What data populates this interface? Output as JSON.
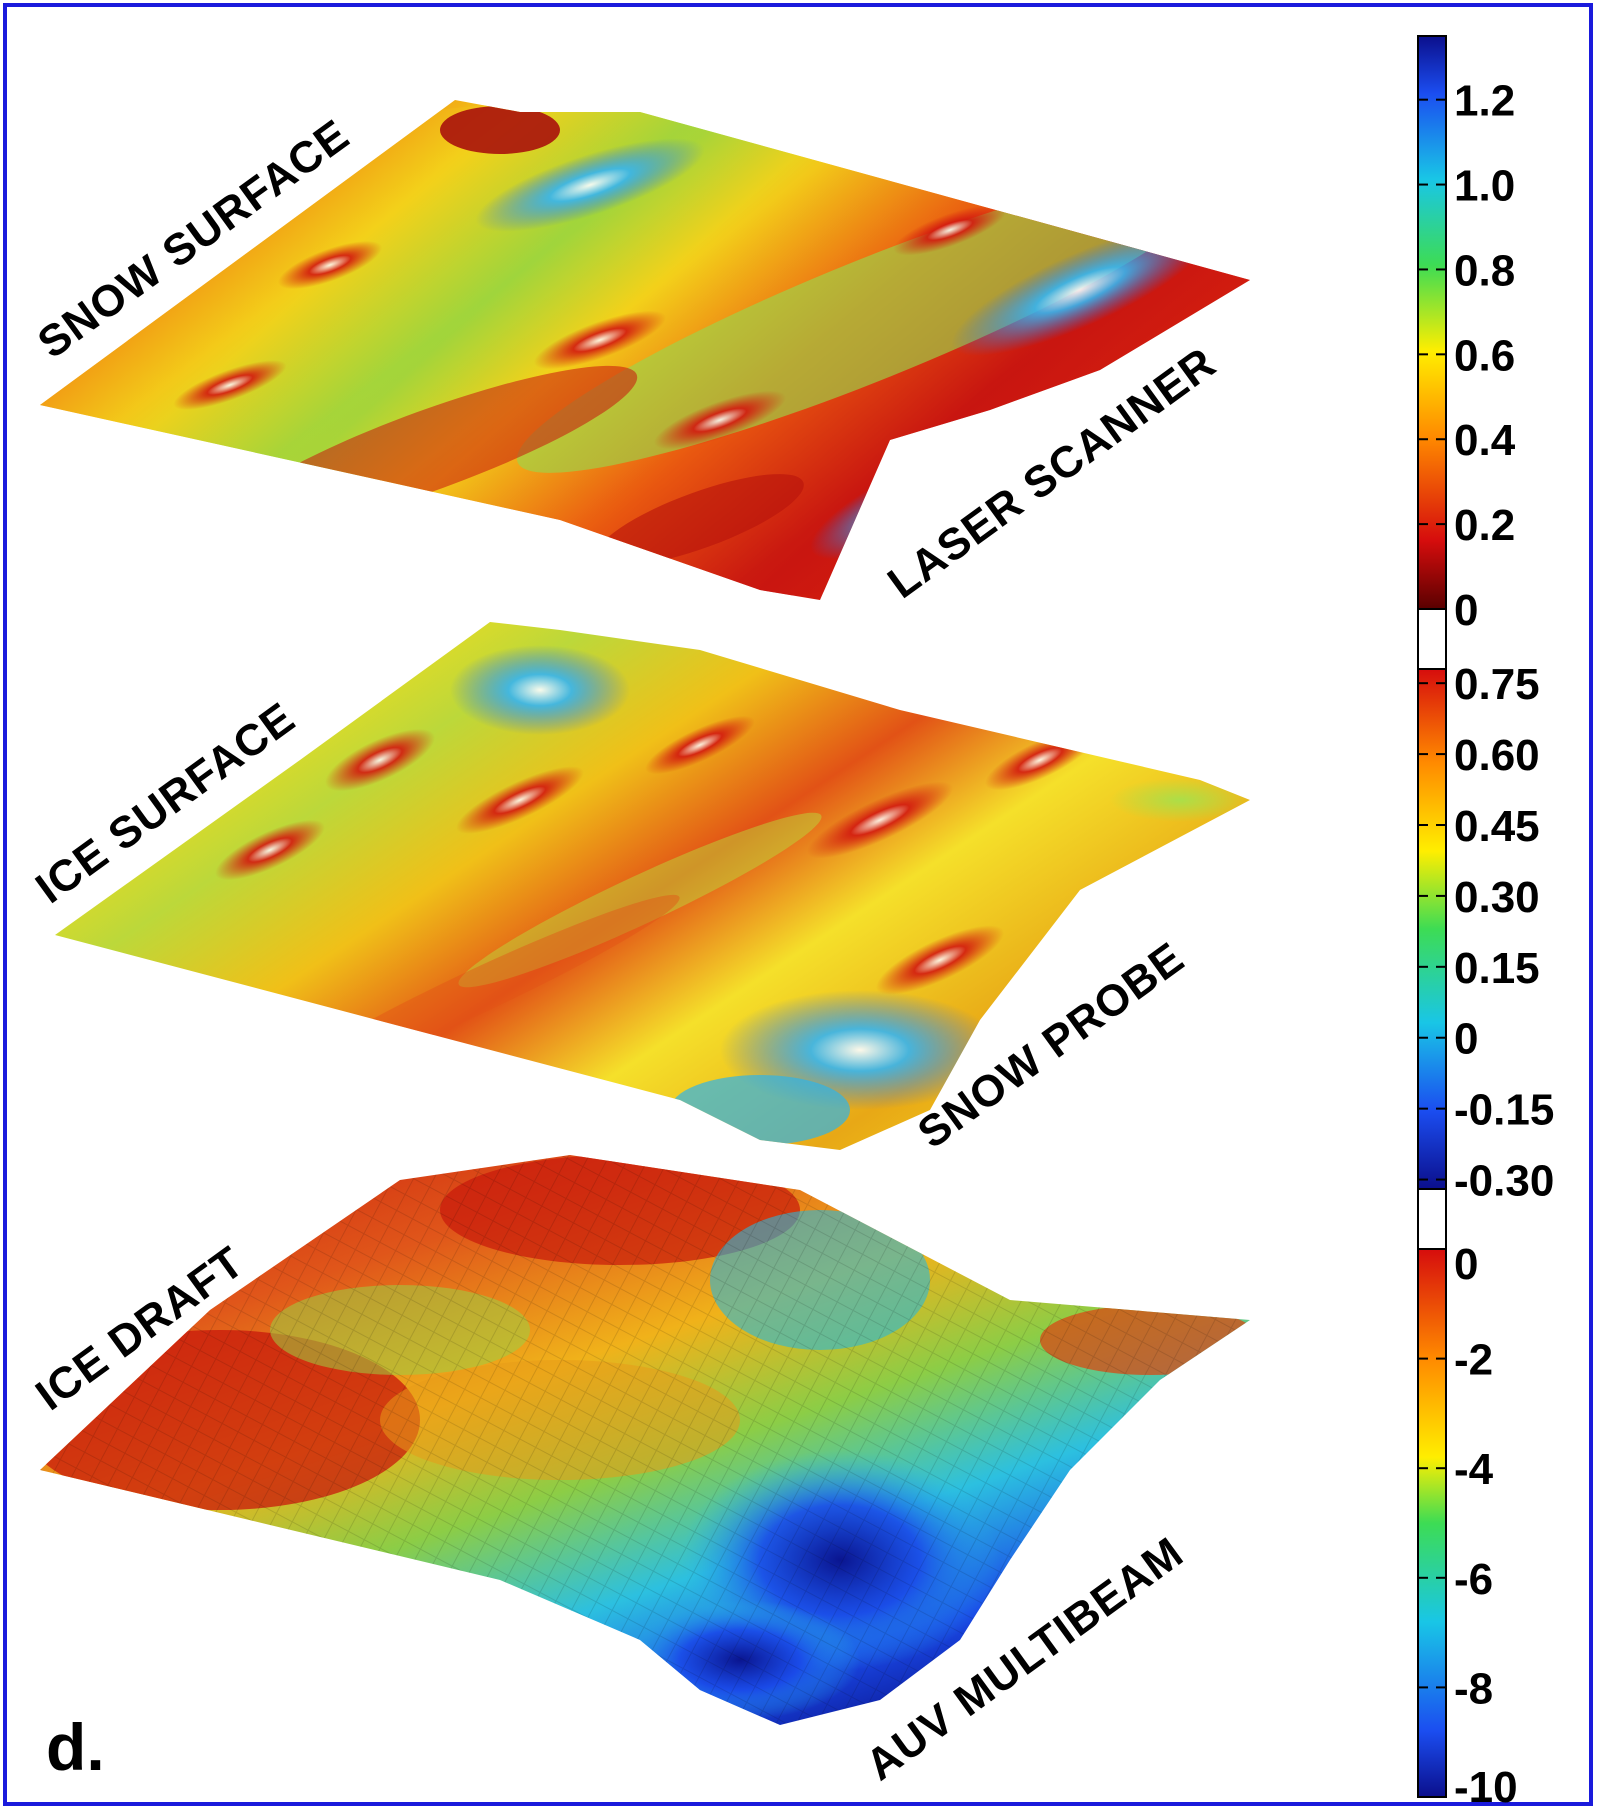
{
  "figure": {
    "panel_label": "d.",
    "frame_color": "#1a1adc"
  },
  "surfaces": [
    {
      "name": "snow-surface",
      "title": "SNOW SURFACE",
      "instrument": "LASER SCANNER",
      "dominant_colors": [
        "#d11a10",
        "#f5c414",
        "#8fd14a",
        "#3a9df0"
      ]
    },
    {
      "name": "ice-surface",
      "title": "ICE SURFACE",
      "instrument": "SNOW PROBE",
      "dominant_colors": [
        "#d81c12",
        "#f2d219",
        "#b4d83a",
        "#2fb3e8"
      ]
    },
    {
      "name": "ice-draft",
      "title": "ICE DRAFT",
      "instrument": "AUV MULTIBEAM",
      "dominant_colors": [
        "#c8180c",
        "#f0a81a",
        "#7ccf4a",
        "#1a3ae0"
      ]
    }
  ],
  "colorbars": [
    {
      "name": "snow-colorbar",
      "ticks": [
        "1.2",
        "1.0",
        "0.8",
        "0.6",
        "0.4",
        "0.2",
        "0"
      ],
      "tick_values": [
        1.2,
        1.0,
        0.8,
        0.6,
        0.4,
        0.2,
        0.0
      ],
      "range": [
        0.0,
        1.35
      ]
    },
    {
      "name": "ice-colorbar",
      "ticks": [
        "0.75",
        "0.60",
        "0.45",
        "0.30",
        "0.15",
        "0",
        "-0.15",
        "-0.30"
      ],
      "tick_values": [
        0.75,
        0.6,
        0.45,
        0.3,
        0.15,
        0.0,
        -0.15,
        -0.3
      ],
      "range": [
        -0.32,
        0.78
      ]
    },
    {
      "name": "draft-colorbar",
      "ticks": [
        "0",
        "-2",
        "-4",
        "-6",
        "-8",
        "-10"
      ],
      "tick_values": [
        0,
        -2,
        -4,
        -6,
        -8,
        -10
      ],
      "range": [
        -10,
        0
      ]
    }
  ]
}
